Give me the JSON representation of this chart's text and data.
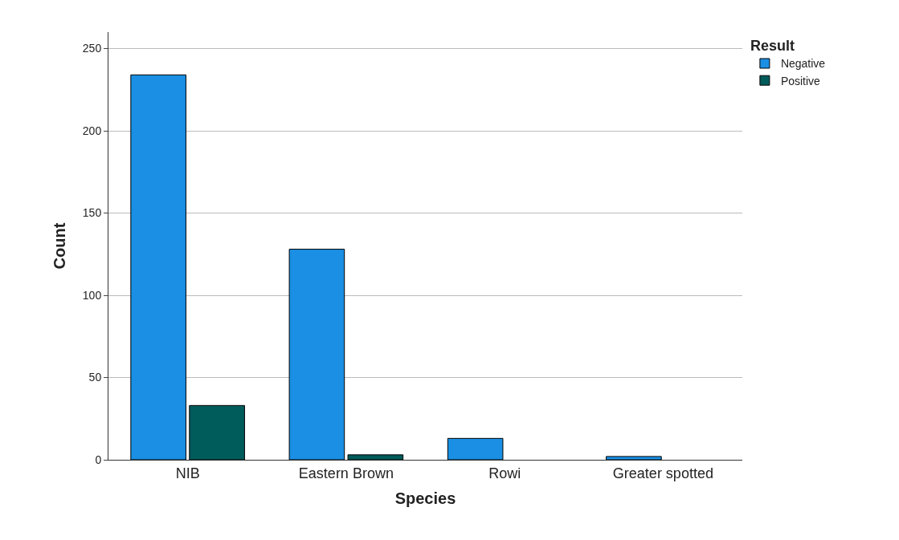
{
  "chart_data": {
    "type": "bar",
    "xlabel": "Species",
    "ylabel": "Count",
    "legend_title": "Result",
    "categories": [
      "NIB",
      "Eastern Brown",
      "Rowi",
      "Greater spotted"
    ],
    "series": [
      {
        "name": "Negative",
        "color": "#1a8fe3",
        "values": [
          234,
          128,
          13,
          2
        ]
      },
      {
        "name": "Positive",
        "color": "#005b5b",
        "values": [
          33,
          3,
          null,
          null
        ]
      }
    ],
    "ylim": [
      0,
      260
    ],
    "yticks": [
      0,
      50,
      100,
      150,
      200,
      250
    ],
    "grid": "y",
    "legend": "top right"
  }
}
